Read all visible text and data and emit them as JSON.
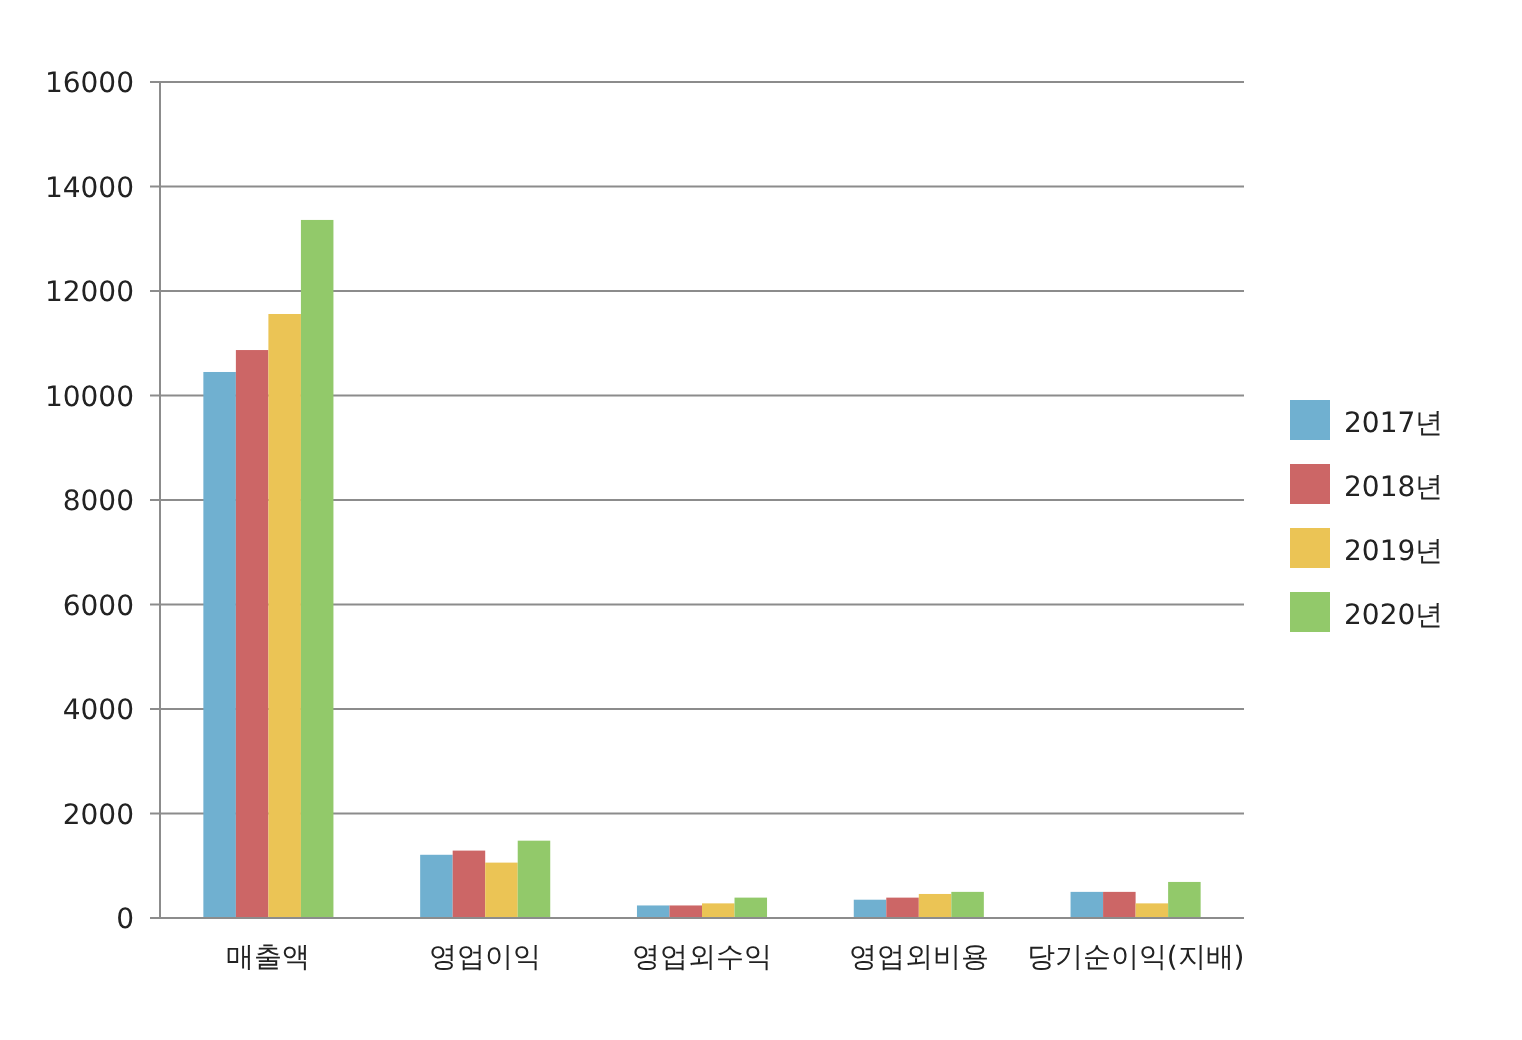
{
  "chart_data": {
    "type": "bar",
    "categories": [
      "매출액",
      "영업이익",
      "영업외수익",
      "영업외비용",
      "당기순이익(지배)"
    ],
    "series": [
      {
        "name": "2017년",
        "color": "#70b0d0",
        "values": [
          10450,
          1210,
          240,
          350,
          500
        ]
      },
      {
        "name": "2018년",
        "color": "#cc6666",
        "values": [
          10870,
          1290,
          240,
          390,
          500
        ]
      },
      {
        "name": "2019년",
        "color": "#ebc455",
        "values": [
          11560,
          1060,
          280,
          460,
          280
        ]
      },
      {
        "name": "2020년",
        "color": "#92c96a",
        "values": [
          13360,
          1480,
          390,
          500,
          690
        ]
      }
    ],
    "ylim": [
      0,
      16000
    ],
    "yticks": [
      0,
      2000,
      4000,
      6000,
      8000,
      10000,
      12000,
      14000,
      16000
    ],
    "grid": "y",
    "legend": "right"
  }
}
